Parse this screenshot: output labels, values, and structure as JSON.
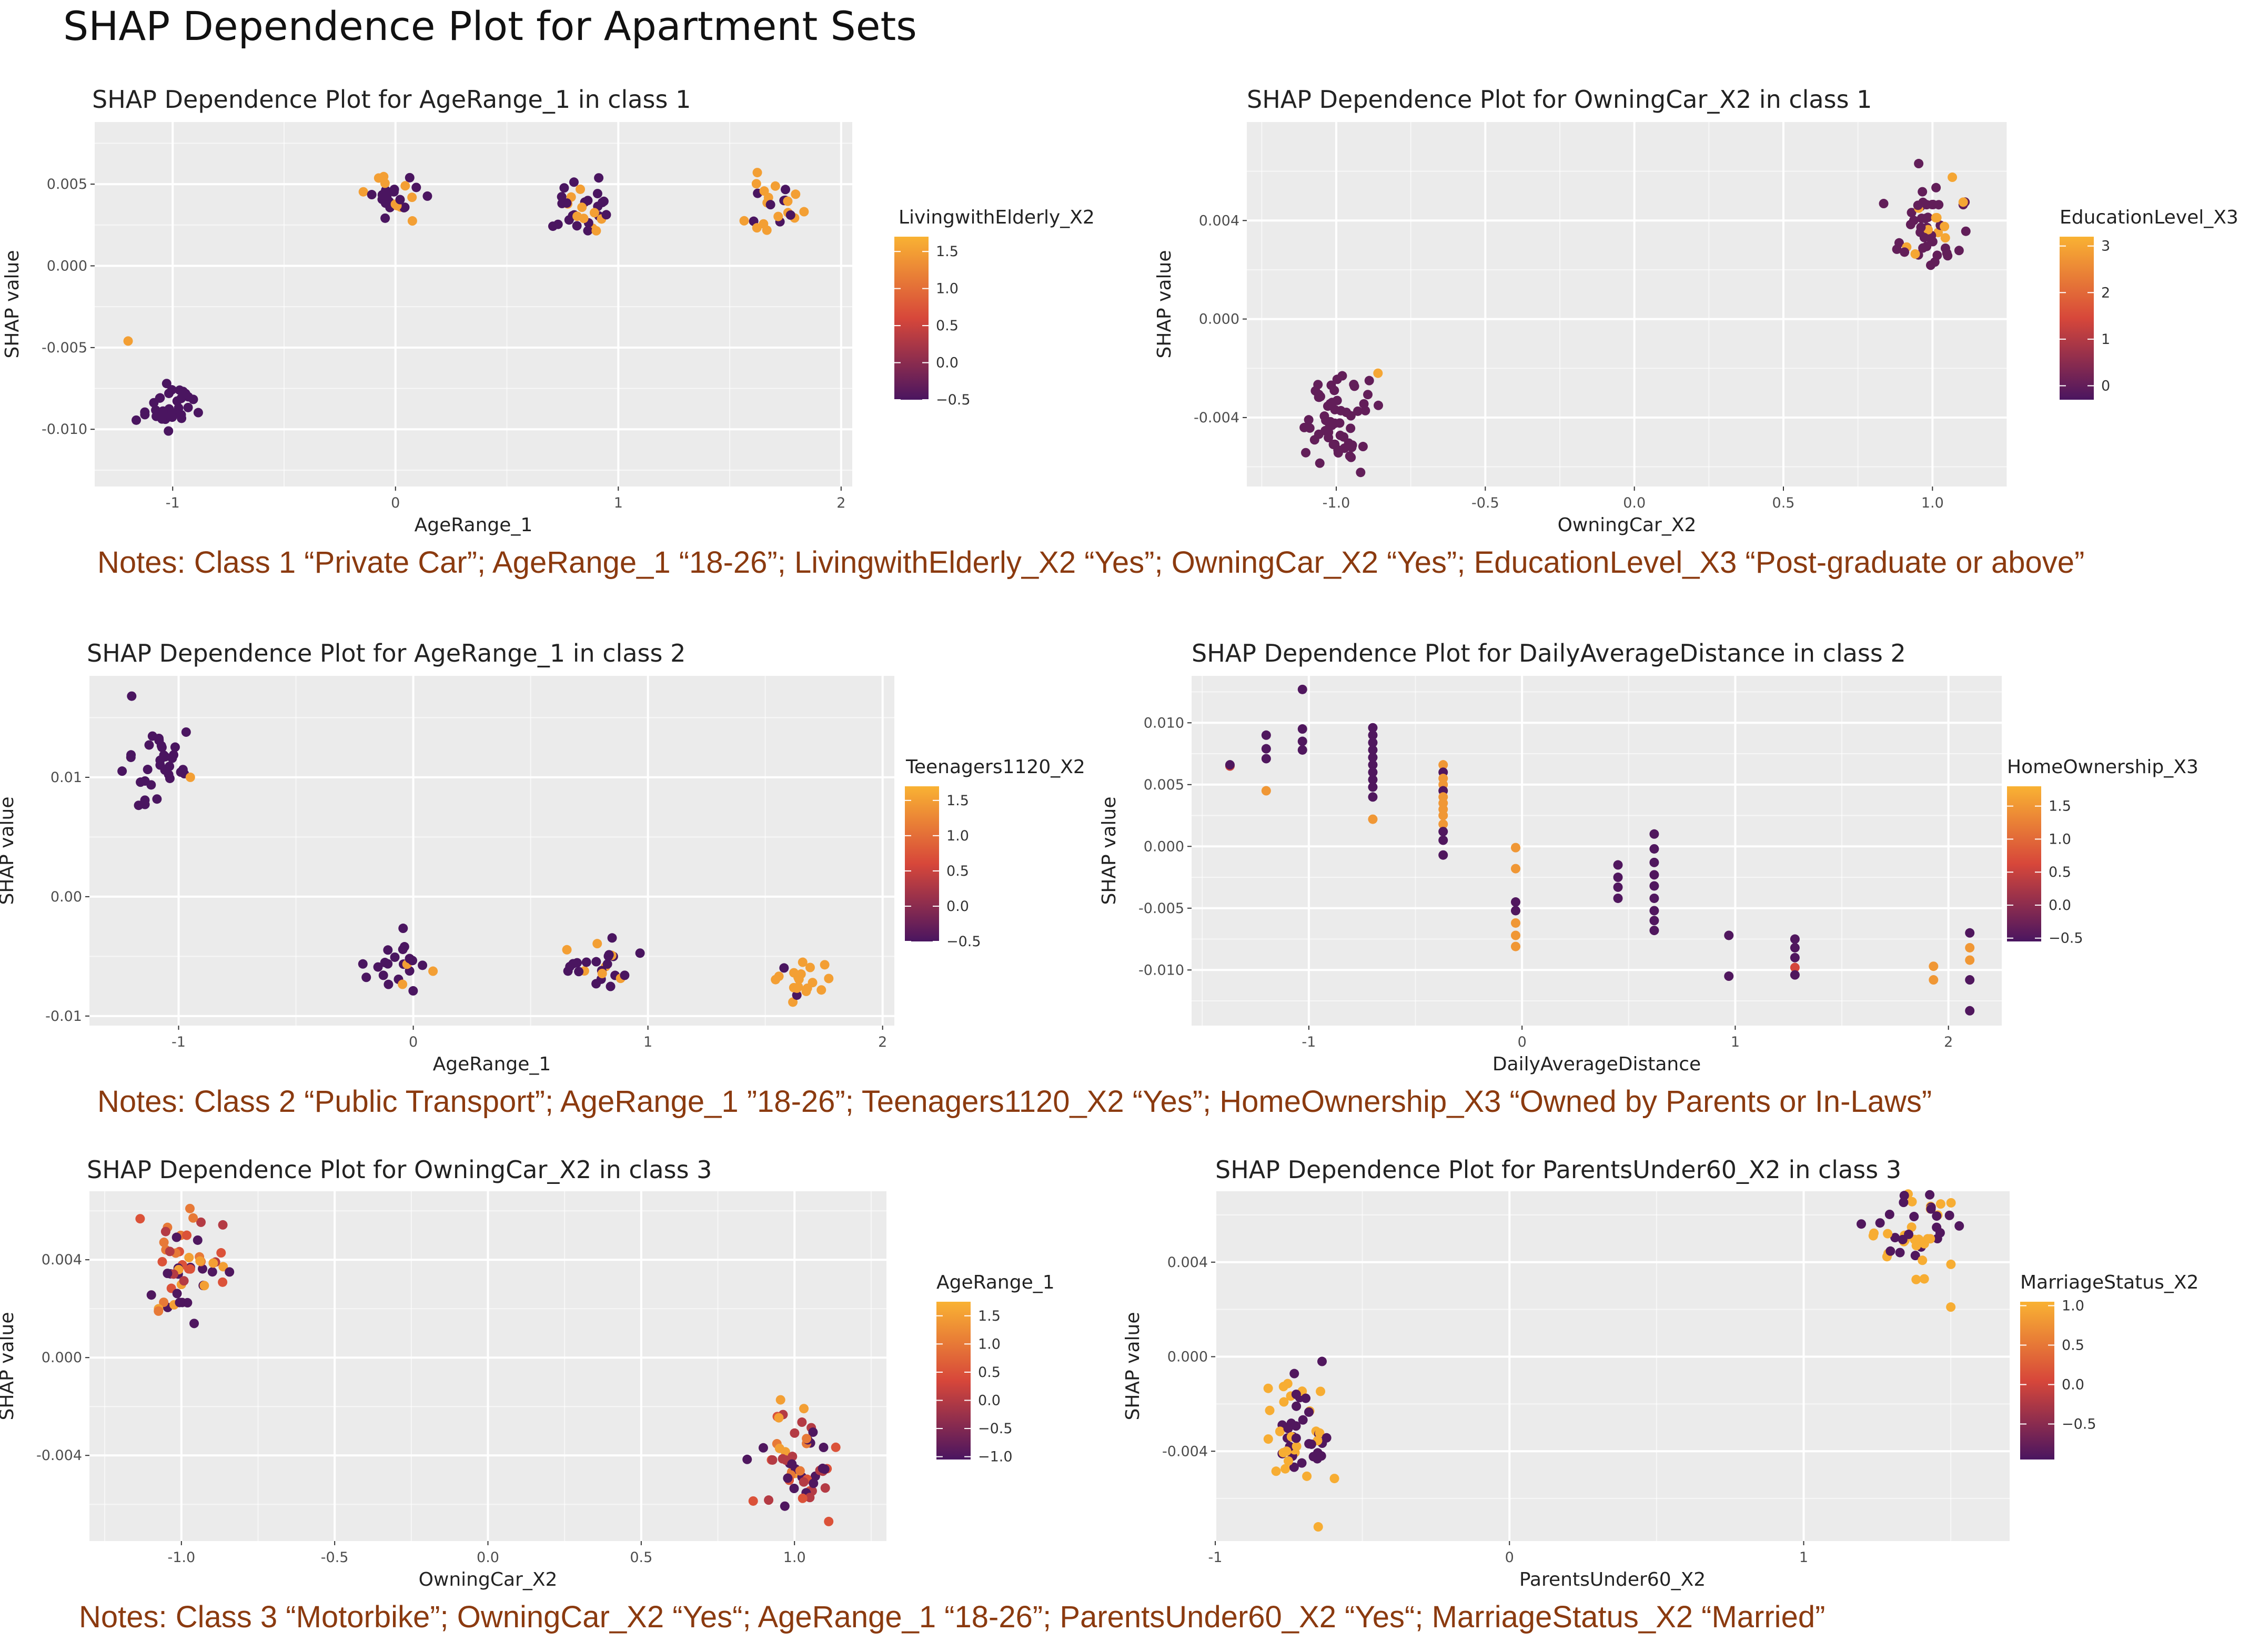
{
  "main_title": "SHAP Dependence Plot for Apartment Sets",
  "notes": [
    "Notes: Class 1 “Private Car”; AgeRange_1 “18-26”; LivingwithElderly_X2 “Yes”; OwningCar_X2 “Yes”; EducationLevel_X3 “Post-graduate or above”",
    "Notes: Class 2 “Public Transport”; AgeRange_1 ”18-26”; Teenagers1120_X2 “Yes”; HomeOwnership_X3 “Owned by Parents or In-Laws”",
    "Notes: Class 3 “Motorbike”; OwningCar_X2 “Yes“; AgeRange_1 “18-26”; ParentsUnder60_X2 “Yes“; MarriageStatus_X2 “Married”"
  ],
  "colors": {
    "panel_bg": "#ebebeb",
    "grid": "#ffffff",
    "point_low": "#4a1560",
    "point_mid": "#d7473a",
    "point_high": "#f9b233",
    "note_text": "#8b3a0f"
  },
  "chart_data": [
    {
      "type": "scatter",
      "title": "SHAP Dependence Plot for AgeRange_1 in class 1",
      "xlabel": "AgeRange_1",
      "ylabel": "SHAP value",
      "xlim": [
        -1.35,
        2.05
      ],
      "ylim": [
        -0.0135,
        0.0088
      ],
      "x_ticks": [
        -1,
        0,
        1,
        2
      ],
      "x_tick_labels": [
        "-1",
        "0",
        "1",
        "2"
      ],
      "y_ticks": [
        0.005,
        0.0,
        -0.005,
        -0.01
      ],
      "y_tick_labels": [
        "0.005",
        "0.000",
        "-0.005",
        "-0.010"
      ],
      "legend": {
        "title": "LivingwithElderly_X2",
        "range": [
          -0.5,
          1.7
        ],
        "ticks": [
          1.5,
          1.0,
          0.5,
          0.0,
          -0.5
        ],
        "tick_labels": [
          "1.5",
          "1.0",
          "0.5",
          "0.0",
          "−0.5"
        ]
      },
      "clusters": [
        {
          "x": -1.0,
          "y": -0.0088,
          "spread_x": 0.18,
          "spread_y": 0.0022,
          "n": 36,
          "color_values": [
            -0.5
          ],
          "seed": 11,
          "extra": [
            [
              -1.2,
              -0.0046,
              1.5
            ]
          ]
        },
        {
          "x": 0.0,
          "y": 0.0043,
          "spread_x": 0.19,
          "spread_y": 0.0022,
          "n": 28,
          "color_values": [
            -0.5,
            -0.5,
            1.5
          ],
          "seed": 12
        },
        {
          "x": 0.85,
          "y": 0.0035,
          "spread_x": 0.19,
          "spread_y": 0.0028,
          "n": 32,
          "color_values": [
            -0.5,
            -0.5,
            -0.5,
            1.5
          ],
          "seed": 13
        },
        {
          "x": 1.7,
          "y": 0.0035,
          "spread_x": 0.19,
          "spread_y": 0.0025,
          "n": 24,
          "color_values": [
            1.5,
            1.5,
            -0.5
          ],
          "seed": 14
        }
      ]
    },
    {
      "type": "scatter",
      "title": "SHAP Dependence Plot for OwningCar_X2 in class 1",
      "xlabel": "OwningCar_X2",
      "ylabel": "SHAP value",
      "xlim": [
        -1.3,
        1.25
      ],
      "ylim": [
        -0.0068,
        0.008
      ],
      "x_ticks": [
        -1.0,
        -0.5,
        0.0,
        0.5,
        1.0
      ],
      "x_tick_labels": [
        "-1.0",
        "-0.5",
        "0.0",
        "0.5",
        "1.0"
      ],
      "y_ticks": [
        0.004,
        0.0,
        -0.004
      ],
      "y_tick_labels": [
        "0.004",
        "0.000",
        "-0.004"
      ],
      "legend": {
        "title": "EducationLevel_X3",
        "range": [
          -0.3,
          3.2
        ],
        "ticks": [
          3,
          2,
          1,
          0
        ],
        "tick_labels": [
          "3",
          "2",
          "1",
          "0"
        ]
      },
      "clusters": [
        {
          "x": -1.0,
          "y": -0.0042,
          "spread_x": 0.19,
          "spread_y": 0.0024,
          "n": 58,
          "color_values": [
            0
          ],
          "seed": 21,
          "extra": [
            [
              -0.86,
              -0.0022,
              3
            ]
          ]
        },
        {
          "x": 1.0,
          "y": 0.0038,
          "spread_x": 0.19,
          "spread_y": 0.0027,
          "n": 52,
          "color_values": [
            0,
            0,
            0,
            0,
            0,
            3
          ],
          "seed": 22
        }
      ]
    },
    {
      "type": "scatter",
      "title": "SHAP Dependence Plot for AgeRange_1 in class 2",
      "xlabel": "AgeRange_1",
      "ylabel": "SHAP value",
      "xlim": [
        -1.38,
        2.05
      ],
      "ylim": [
        -0.0108,
        0.0185
      ],
      "x_ticks": [
        -1,
        0,
        1,
        2
      ],
      "x_tick_labels": [
        "-1",
        "0",
        "1",
        "2"
      ],
      "y_ticks": [
        0.01,
        0.0,
        -0.01
      ],
      "y_tick_labels": [
        "0.01",
        "0.00",
        "-0.01"
      ],
      "legend": {
        "title": "Teenagers1120_X2",
        "range": [
          -0.5,
          1.7
        ],
        "ticks": [
          1.5,
          1.0,
          0.5,
          0.0,
          -0.5
        ],
        "tick_labels": [
          "1.5",
          "1.0",
          "0.5",
          "0.0",
          "−0.5"
        ]
      },
      "clusters": [
        {
          "x": -1.08,
          "y": 0.011,
          "spread_x": 0.21,
          "spread_y": 0.0045,
          "n": 32,
          "color_values": [
            -0.5
          ],
          "seed": 31,
          "extra": [
            [
              -1.2,
              0.0168,
              -0.5
            ],
            [
              -0.95,
              0.01,
              1.5
            ]
          ]
        },
        {
          "x": -0.05,
          "y": -0.0052,
          "spread_x": 0.2,
          "spread_y": 0.0032,
          "n": 22,
          "color_values": [
            -0.5,
            -0.5,
            -0.5,
            1.5
          ],
          "seed": 32
        },
        {
          "x": 0.8,
          "y": -0.0055,
          "spread_x": 0.21,
          "spread_y": 0.0035,
          "n": 26,
          "color_values": [
            -0.5,
            1.5,
            -0.5
          ],
          "seed": 33
        },
        {
          "x": 1.65,
          "y": -0.0068,
          "spread_x": 0.19,
          "spread_y": 0.0028,
          "n": 20,
          "color_values": [
            1.5,
            1.5,
            1.5,
            -0.5
          ],
          "seed": 34
        }
      ]
    },
    {
      "type": "scatter",
      "title": "SHAP Dependence Plot for DailyAverageDistance in class 2",
      "xlabel": "DailyAverageDistance",
      "ylabel": "SHAP value",
      "xlim": [
        -1.55,
        2.25
      ],
      "ylim": [
        -0.0145,
        0.0138
      ],
      "x_ticks": [
        -1,
        0,
        1,
        2
      ],
      "x_tick_labels": [
        "-1",
        "0",
        "1",
        "2"
      ],
      "y_ticks": [
        0.01,
        0.005,
        0.0,
        -0.005,
        -0.01
      ],
      "y_tick_labels": [
        "0.010",
        "0.005",
        "0.000",
        "-0.005",
        "-0.010"
      ],
      "legend": {
        "title": "HomeOwnership_X3",
        "range": [
          -0.55,
          1.8
        ],
        "ticks": [
          1.5,
          1.0,
          0.5,
          0.0,
          -0.5
        ],
        "tick_labels": [
          "1.5",
          "1.0",
          "0.5",
          "0.0",
          "−0.5"
        ]
      },
      "points": [
        [
          -1.37,
          0.0065,
          0.6
        ],
        [
          -1.37,
          0.0066,
          -0.5
        ],
        [
          -1.2,
          0.009,
          -0.5
        ],
        [
          -1.2,
          0.0079,
          -0.5
        ],
        [
          -1.2,
          0.0071,
          -0.5
        ],
        [
          -1.2,
          0.0045,
          1.5
        ],
        [
          -1.03,
          0.0127,
          -0.5
        ],
        [
          -1.03,
          0.0095,
          -0.5
        ],
        [
          -1.03,
          0.0085,
          -0.5
        ],
        [
          -1.03,
          0.0078,
          -0.5
        ],
        [
          -0.7,
          0.0096,
          -0.5
        ],
        [
          -0.7,
          0.009,
          -0.5
        ],
        [
          -0.7,
          0.0084,
          -0.5
        ],
        [
          -0.7,
          0.0078,
          -0.5
        ],
        [
          -0.7,
          0.0072,
          -0.5
        ],
        [
          -0.7,
          0.0066,
          -0.5
        ],
        [
          -0.7,
          0.006,
          -0.5
        ],
        [
          -0.7,
          0.0054,
          -0.5
        ],
        [
          -0.7,
          0.0048,
          -0.5
        ],
        [
          -0.7,
          0.004,
          -0.5
        ],
        [
          -0.7,
          0.0022,
          1.5
        ],
        [
          -0.37,
          0.0066,
          1.5
        ],
        [
          -0.37,
          0.006,
          -0.5
        ],
        [
          -0.37,
          0.0055,
          1.5
        ],
        [
          -0.37,
          0.005,
          1.5
        ],
        [
          -0.37,
          0.0045,
          -0.5
        ],
        [
          -0.37,
          0.004,
          1.5
        ],
        [
          -0.37,
          0.0035,
          1.5
        ],
        [
          -0.37,
          0.003,
          1.5
        ],
        [
          -0.37,
          0.0025,
          1.5
        ],
        [
          -0.37,
          0.0018,
          1.5
        ],
        [
          -0.37,
          0.0012,
          -0.5
        ],
        [
          -0.37,
          0.0005,
          -0.5
        ],
        [
          -0.37,
          -0.0007,
          -0.5
        ],
        [
          -0.03,
          -0.0001,
          1.5
        ],
        [
          -0.03,
          -0.0018,
          1.5
        ],
        [
          -0.03,
          -0.0045,
          -0.5
        ],
        [
          -0.03,
          -0.0052,
          -0.5
        ],
        [
          -0.03,
          -0.0062,
          1.5
        ],
        [
          -0.03,
          -0.0072,
          1.5
        ],
        [
          -0.03,
          -0.0081,
          1.5
        ],
        [
          0.45,
          -0.0015,
          -0.5
        ],
        [
          0.45,
          -0.0025,
          -0.5
        ],
        [
          0.45,
          -0.0033,
          -0.5
        ],
        [
          0.45,
          -0.0042,
          -0.5
        ],
        [
          0.62,
          0.001,
          -0.5
        ],
        [
          0.62,
          -0.0002,
          -0.5
        ],
        [
          0.62,
          -0.0013,
          -0.5
        ],
        [
          0.62,
          -0.0023,
          -0.5
        ],
        [
          0.62,
          -0.0032,
          -0.5
        ],
        [
          0.62,
          -0.0042,
          -0.5
        ],
        [
          0.62,
          -0.0052,
          -0.5
        ],
        [
          0.62,
          -0.006,
          -0.5
        ],
        [
          0.62,
          -0.0068,
          -0.5
        ],
        [
          0.97,
          -0.0072,
          -0.5
        ],
        [
          0.97,
          -0.0105,
          -0.5
        ],
        [
          1.28,
          -0.0075,
          -0.5
        ],
        [
          1.28,
          -0.0082,
          -0.5
        ],
        [
          1.28,
          -0.009,
          -0.5
        ],
        [
          1.28,
          -0.0098,
          0.6
        ],
        [
          1.28,
          -0.0104,
          -0.5
        ],
        [
          1.93,
          -0.0097,
          1.5
        ],
        [
          1.93,
          -0.0108,
          1.5
        ],
        [
          2.1,
          -0.007,
          -0.5
        ],
        [
          2.1,
          -0.0082,
          1.5
        ],
        [
          2.1,
          -0.0092,
          1.5
        ],
        [
          2.1,
          -0.0108,
          -0.5
        ],
        [
          2.1,
          -0.0133,
          -0.5
        ]
      ]
    },
    {
      "type": "scatter",
      "title": "SHAP Dependence Plot for OwningCar_X2 in class 3",
      "xlabel": "OwningCar_X2",
      "ylabel": "SHAP value",
      "xlim": [
        -1.3,
        1.3
      ],
      "ylim": [
        -0.0075,
        0.0068
      ],
      "x_ticks": [
        -1.0,
        -0.5,
        0.0,
        0.5,
        1.0
      ],
      "x_tick_labels": [
        "-1.0",
        "-0.5",
        "0.0",
        "0.5",
        "1.0"
      ],
      "y_ticks": [
        0.004,
        0.0,
        -0.004
      ],
      "y_tick_labels": [
        "0.004",
        "0.000",
        "-0.004"
      ],
      "legend": {
        "title": "AgeRange_1",
        "range": [
          -1.05,
          1.75
        ],
        "ticks": [
          1.5,
          1.0,
          0.5,
          0.0,
          -0.5,
          -1.0
        ],
        "tick_labels": [
          "1.5",
          "1.0",
          "0.5",
          "0.0",
          "−0.5",
          "−1.0"
        ]
      },
      "clusters": [
        {
          "x": -1.0,
          "y": 0.0037,
          "spread_x": 0.2,
          "spread_y": 0.0032,
          "n": 55,
          "color_values": [
            -1.0,
            0.0,
            1.0,
            1.5,
            -1.0,
            0.5
          ],
          "seed": 51
        },
        {
          "x": 1.0,
          "y": -0.0043,
          "spread_x": 0.2,
          "spread_y": 0.0035,
          "n": 55,
          "color_values": [
            -1.0,
            0.0,
            1.0,
            1.5,
            -1.0,
            0.5
          ],
          "seed": 52
        }
      ]
    },
    {
      "type": "scatter",
      "title": "SHAP Dependence Plot for ParentsUnder60_X2 in class 3",
      "xlabel": "ParentsUnder60_X2",
      "ylabel": "SHAP value",
      "xlim": [
        -1.0,
        1.7
      ],
      "ylim": [
        -0.0078,
        0.007
      ],
      "x_ticks": [
        -1,
        0,
        1
      ],
      "x_tick_labels": [
        "-1",
        "0",
        "1"
      ],
      "y_ticks": [
        0.004,
        0.0,
        -0.004
      ],
      "y_tick_labels": [
        "0.004",
        "0.000",
        "-0.004"
      ],
      "legend": {
        "title": "MarriageStatus_X2",
        "range": [
          -0.95,
          1.05
        ],
        "ticks": [
          1.0,
          0.5,
          0.0,
          -0.5
        ],
        "tick_labels": [
          "1.0",
          "0.5",
          "0.0",
          "−0.5"
        ]
      },
      "clusters": [
        {
          "x": -0.73,
          "y": -0.0032,
          "spread_x": 0.2,
          "spread_y": 0.0036,
          "n": 55,
          "color_values": [
            -0.9,
            -0.9,
            1.0,
            1.0
          ],
          "seed": 61,
          "extra": [
            [
              -0.65,
              -0.0072,
              1.0
            ]
          ]
        },
        {
          "x": 1.37,
          "y": 0.0052,
          "spread_x": 0.2,
          "spread_y": 0.0028,
          "n": 48,
          "color_values": [
            1.0,
            1.0,
            -0.9,
            -0.9
          ],
          "seed": 62,
          "extra": [
            [
              1.5,
              0.0021,
              1.0
            ]
          ]
        }
      ]
    }
  ]
}
